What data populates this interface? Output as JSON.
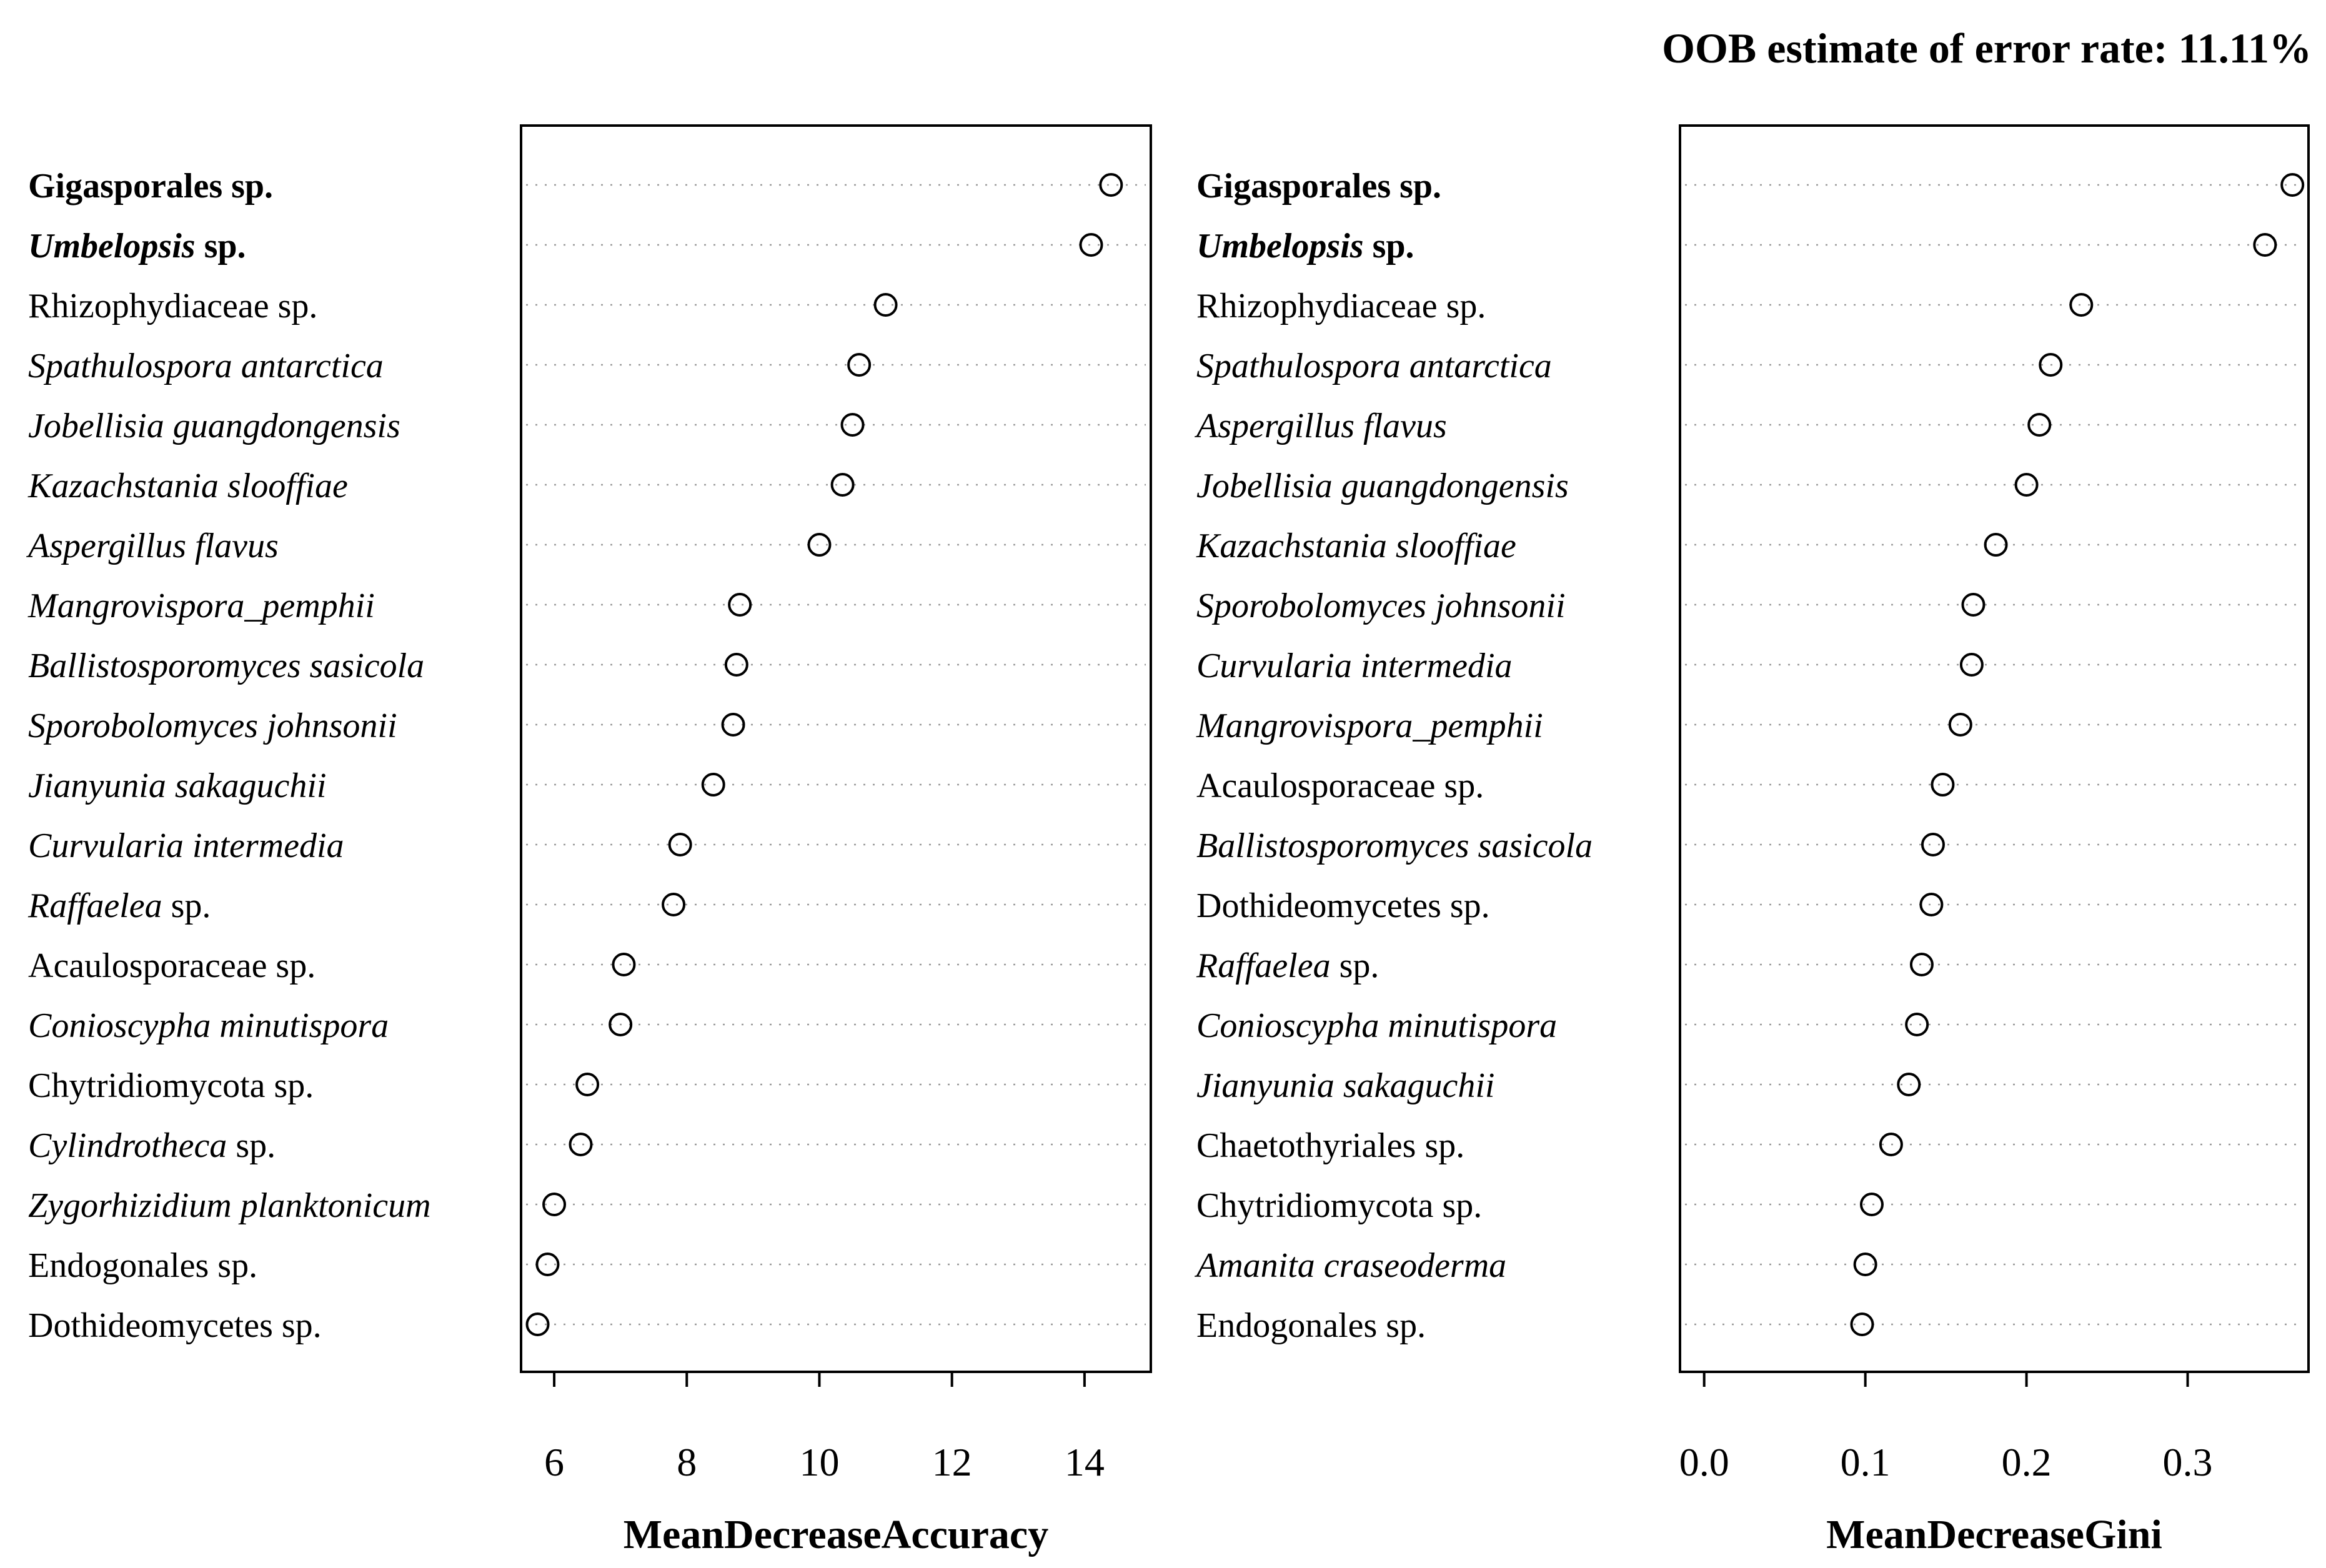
{
  "title": "OOB estimate of error rate: 11.11%",
  "chart_data": [
    {
      "type": "scatter",
      "subtype": "dotchart",
      "xlabel": "MeanDecreaseAccuracy",
      "xlim": [
        5.5,
        15.0
      ],
      "xticks": [
        6,
        8,
        10,
        12,
        14
      ],
      "xtick_labels": [
        "6",
        "8",
        "10",
        "12",
        "14"
      ],
      "grid": "dotted horizontal",
      "items": [
        {
          "name": "Gigasporales sp.",
          "pre": "",
          "italic": "",
          "post": "Gigasporales sp.",
          "bold": true,
          "value": 14.4
        },
        {
          "name": "Umbelopsis sp.",
          "pre": "",
          "italic": "Umbelopsis",
          "post": " sp.",
          "bold": true,
          "value": 14.1
        },
        {
          "name": "Rhizophydiaceae sp.",
          "pre": "",
          "italic": "",
          "post": "Rhizophydiaceae sp.",
          "bold": false,
          "value": 11.0
        },
        {
          "name": "Spathulospora antarctica",
          "pre": "",
          "italic": "Spathulospora antarctica",
          "post": "",
          "bold": false,
          "value": 10.6
        },
        {
          "name": "Jobellisia guangdongensis",
          "pre": "",
          "italic": "Jobellisia guangdongensis",
          "post": "",
          "bold": false,
          "value": 10.5
        },
        {
          "name": "Kazachstania slooffiae",
          "pre": "",
          "italic": "Kazachstania slooffiae",
          "post": "",
          "bold": false,
          "value": 10.35
        },
        {
          "name": "Aspergillus flavus",
          "pre": "",
          "italic": "Aspergillus flavus",
          "post": "",
          "bold": false,
          "value": 10.0
        },
        {
          "name": "Mangrovispora_pemphii",
          "pre": "",
          "italic": "Mangrovispora_pemphii",
          "post": "",
          "bold": false,
          "value": 8.8
        },
        {
          "name": "Ballistosporomyces sasicola",
          "pre": "",
          "italic": "Ballistosporomyces sasicola",
          "post": "",
          "bold": false,
          "value": 8.75
        },
        {
          "name": "Sporobolomyces johnsonii",
          "pre": "",
          "italic": "Sporobolomyces johnsonii",
          "post": "",
          "bold": false,
          "value": 8.7
        },
        {
          "name": "Jianyunia sakaguchii",
          "pre": "",
          "italic": "Jianyunia sakaguchii",
          "post": "",
          "bold": false,
          "value": 8.4
        },
        {
          "name": "Curvularia intermedia",
          "pre": "",
          "italic": "Curvularia intermedia",
          "post": "",
          "bold": false,
          "value": 7.9
        },
        {
          "name": "Raffaelea sp.",
          "pre": "",
          "italic": "Raffaelea",
          "post": " sp.",
          "bold": false,
          "value": 7.8
        },
        {
          "name": "Acaulosporaceae sp.",
          "pre": "",
          "italic": "",
          "post": "Acaulosporaceae sp.",
          "bold": false,
          "value": 7.05
        },
        {
          "name": "Conioscypha minutispora",
          "pre": "",
          "italic": "Conioscypha minutispora",
          "post": "",
          "bold": false,
          "value": 7.0
        },
        {
          "name": "Chytridiomycota sp.",
          "pre": "",
          "italic": "",
          "post": "Chytridiomycota sp.",
          "bold": false,
          "value": 6.5
        },
        {
          "name": "Cylindrotheca sp.",
          "pre": "",
          "italic": "Cylindrotheca",
          "post": " sp.",
          "bold": false,
          "value": 6.4
        },
        {
          "name": "Zygorhizidium planktonicum",
          "pre": "",
          "italic": "Zygorhizidium planktonicum",
          "post": "",
          "bold": false,
          "value": 6.0
        },
        {
          "name": "Endogonales sp.",
          "pre": "",
          "italic": "",
          "post": "Endogonales sp.",
          "bold": false,
          "value": 5.9
        },
        {
          "name": "Dothideomycetes sp.",
          "pre": "",
          "italic": "",
          "post": "Dothideomycetes sp.",
          "bold": false,
          "value": 5.75
        }
      ]
    },
    {
      "type": "scatter",
      "subtype": "dotchart",
      "xlabel": "MeanDecreaseGini",
      "xlim": [
        -0.015,
        0.375
      ],
      "xticks": [
        0.0,
        0.1,
        0.2,
        0.3
      ],
      "xtick_labels": [
        "0.0",
        "0.1",
        "0.2",
        "0.3"
      ],
      "grid": "dotted horizontal",
      "items": [
        {
          "name": "Gigasporales sp.",
          "pre": "",
          "italic": "",
          "post": "Gigasporales sp.",
          "bold": true,
          "value": 0.365
        },
        {
          "name": "Umbelopsis sp.",
          "pre": "",
          "italic": "Umbelopsis",
          "post": " sp.",
          "bold": true,
          "value": 0.348
        },
        {
          "name": "Rhizophydiaceae sp.",
          "pre": "",
          "italic": "",
          "post": "Rhizophydiaceae sp.",
          "bold": false,
          "value": 0.234
        },
        {
          "name": "Spathulospora antarctica",
          "pre": "",
          "italic": "Spathulospora antarctica",
          "post": "",
          "bold": false,
          "value": 0.215
        },
        {
          "name": "Aspergillus flavus",
          "pre": "",
          "italic": "Aspergillus flavus",
          "post": "",
          "bold": false,
          "value": 0.208
        },
        {
          "name": "Jobellisia guangdongensis",
          "pre": "",
          "italic": "Jobellisia guangdongensis",
          "post": "",
          "bold": false,
          "value": 0.2
        },
        {
          "name": "Kazachstania slooffiae",
          "pre": "",
          "italic": "Kazachstania slooffiae",
          "post": "",
          "bold": false,
          "value": 0.181
        },
        {
          "name": "Sporobolomyces johnsonii",
          "pre": "",
          "italic": "Sporobolomyces johnsonii",
          "post": "",
          "bold": false,
          "value": 0.167
        },
        {
          "name": "Curvularia intermedia",
          "pre": "",
          "italic": "Curvularia intermedia",
          "post": "",
          "bold": false,
          "value": 0.166
        },
        {
          "name": "Mangrovispora_pemphii",
          "pre": "",
          "italic": "Mangrovispora_pemphii",
          "post": "",
          "bold": false,
          "value": 0.159
        },
        {
          "name": "Acaulosporaceae sp.",
          "pre": "",
          "italic": "",
          "post": "Acaulosporaceae sp.",
          "bold": false,
          "value": 0.148
        },
        {
          "name": "Ballistosporomyces sasicola",
          "pre": "",
          "italic": "Ballistosporomyces sasicola",
          "post": "",
          "bold": false,
          "value": 0.142
        },
        {
          "name": "Dothideomycetes sp.",
          "pre": "",
          "italic": "",
          "post": "Dothideomycetes sp.",
          "bold": false,
          "value": 0.141
        },
        {
          "name": "Raffaelea sp.",
          "pre": "",
          "italic": "Raffaelea",
          "post": " sp.",
          "bold": false,
          "value": 0.135
        },
        {
          "name": "Conioscypha minutispora",
          "pre": "",
          "italic": "Conioscypha minutispora",
          "post": "",
          "bold": false,
          "value": 0.132
        },
        {
          "name": "Jianyunia sakaguchii",
          "pre": "",
          "italic": "Jianyunia sakaguchii",
          "post": "",
          "bold": false,
          "value": 0.127
        },
        {
          "name": "Chaetothyriales sp.",
          "pre": "",
          "italic": "",
          "post": "Chaetothyriales sp.",
          "bold": false,
          "value": 0.116
        },
        {
          "name": "Chytridiomycota sp.",
          "pre": "",
          "italic": "",
          "post": "Chytridiomycota sp.",
          "bold": false,
          "value": 0.104
        },
        {
          "name": "Amanita craseoderma",
          "pre": "",
          "italic": "Amanita craseoderma",
          "post": "",
          "bold": false,
          "value": 0.1
        },
        {
          "name": "Endogonales sp.",
          "pre": "",
          "italic": "",
          "post": "Endogonales sp.",
          "bold": false,
          "value": 0.098
        }
      ]
    }
  ]
}
